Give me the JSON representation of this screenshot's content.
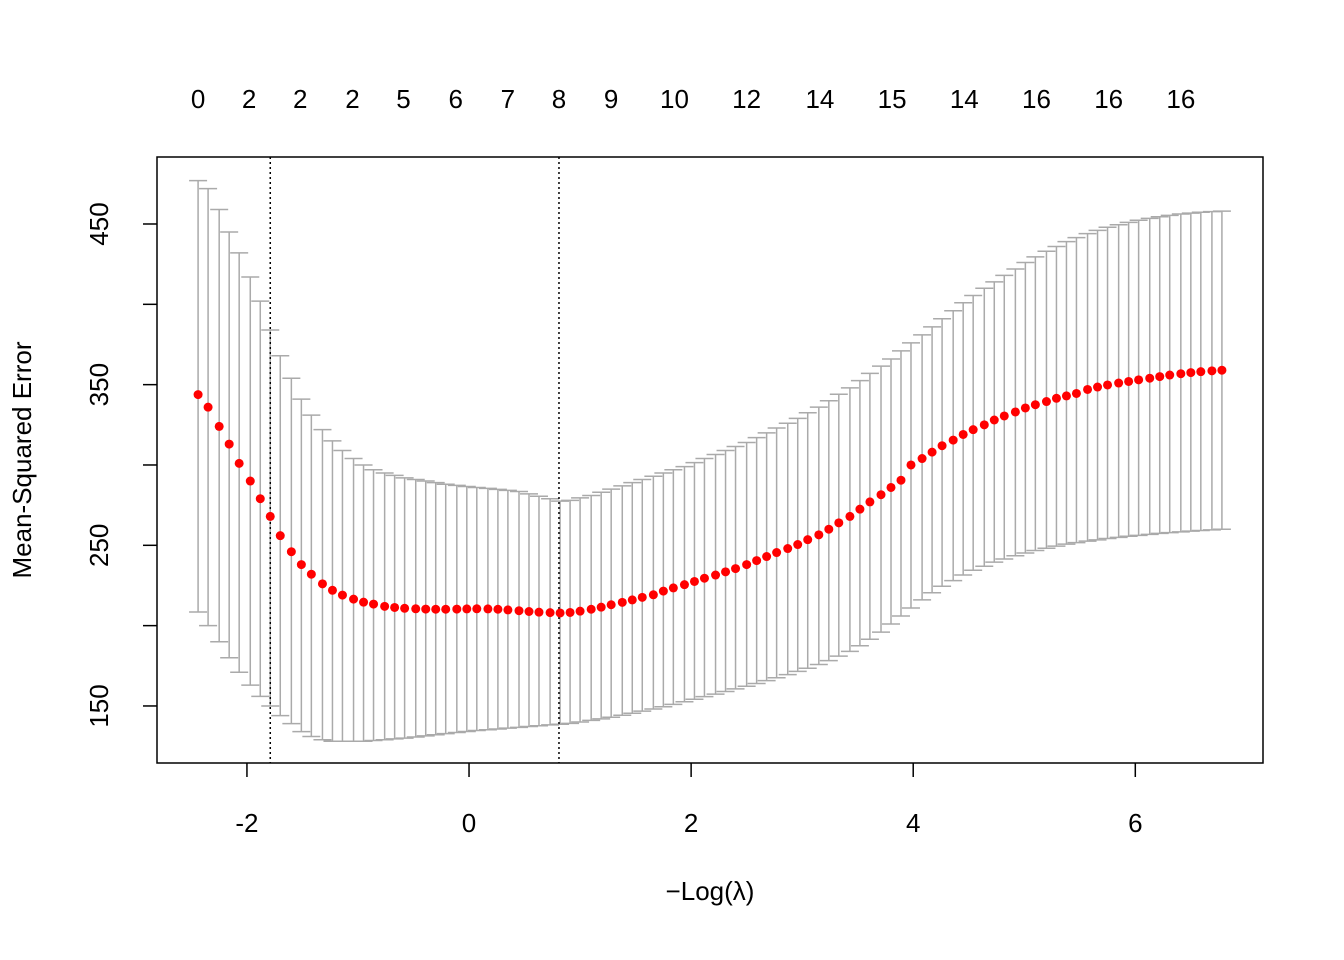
{
  "chart_data": {
    "type": "errorbar",
    "xlabel": "−Log(λ)",
    "ylabel": "Mean-Squared Error",
    "xlim": [
      -2.81,
      7.15
    ],
    "ylim": [
      114.5,
      491.7
    ],
    "xticks": [
      -2,
      0,
      2,
      4,
      6
    ],
    "yticks": [
      150,
      250,
      350,
      450
    ],
    "yminor_ticks": [
      200,
      300,
      400
    ],
    "vlines": [
      -1.79,
      0.81
    ],
    "top_axis": {
      "ticks": [
        -2.44,
        -1.98,
        -1.52,
        -1.05,
        -0.59,
        -0.12,
        0.35,
        0.81,
        1.28,
        1.85,
        2.5,
        3.16,
        3.81,
        4.46,
        5.11,
        5.76,
        6.41
      ],
      "labels": [
        0,
        2,
        2,
        2,
        5,
        6,
        7,
        8,
        9,
        10,
        12,
        14,
        15,
        14,
        16,
        16,
        16
      ]
    },
    "point_color": "#ff0000",
    "bar_color": "#aaaaaa",
    "x": [
      -2.44,
      -2.35,
      -2.25,
      -2.16,
      -2.07,
      -1.97,
      -1.88,
      -1.79,
      -1.7,
      -1.6,
      -1.51,
      -1.42,
      -1.32,
      -1.23,
      -1.14,
      -1.04,
      -0.95,
      -0.86,
      -0.76,
      -0.67,
      -0.58,
      -0.48,
      -0.39,
      -0.3,
      -0.21,
      -0.11,
      -0.02,
      0.07,
      0.17,
      0.26,
      0.35,
      0.45,
      0.54,
      0.63,
      0.73,
      0.82,
      0.91,
      1.0,
      1.1,
      1.19,
      1.28,
      1.38,
      1.47,
      1.56,
      1.66,
      1.75,
      1.84,
      1.94,
      2.03,
      2.12,
      2.22,
      2.31,
      2.4,
      2.5,
      2.59,
      2.68,
      2.77,
      2.87,
      2.96,
      3.05,
      3.15,
      3.24,
      3.33,
      3.43,
      3.52,
      3.61,
      3.71,
      3.8,
      3.89,
      3.98,
      4.08,
      4.17,
      4.26,
      4.36,
      4.45,
      4.54,
      4.64,
      4.73,
      4.82,
      4.92,
      5.01,
      5.1,
      5.2,
      5.29,
      5.38,
      5.47,
      5.57,
      5.66,
      5.75,
      5.85,
      5.94,
      6.03,
      6.13,
      6.22,
      6.31,
      6.41,
      6.5,
      6.59,
      6.69,
      6.78
    ],
    "values": [
      343.8,
      336,
      324,
      313,
      301,
      290,
      279,
      268,
      256,
      246,
      238,
      232,
      226,
      222,
      219,
      216.5,
      214.6,
      213.4,
      212,
      211.3,
      210.8,
      210.5,
      210.3,
      210.2,
      210.2,
      210.3,
      210.4,
      210.5,
      210.4,
      210.2,
      209.8,
      209.3,
      208.8,
      208.4,
      208.1,
      207.9,
      208.2,
      209,
      210.2,
      211.5,
      213,
      214.5,
      216,
      217.6,
      219.2,
      221.5,
      223.5,
      225.5,
      227.5,
      229.5,
      231.5,
      233.5,
      235.5,
      238,
      240.5,
      243,
      245.5,
      248,
      250.5,
      253.5,
      256.5,
      260,
      264,
      268,
      272.5,
      277,
      281.5,
      286,
      290.5,
      300,
      304,
      308,
      312,
      315.5,
      319,
      322,
      325,
      328,
      330.5,
      333,
      335.5,
      337.5,
      339.5,
      341.5,
      343,
      344.5,
      347,
      348.5,
      349.8,
      351,
      352,
      353,
      354,
      355,
      356,
      356.8,
      357.5,
      358.1,
      358.6,
      359
    ],
    "upper": [
      477,
      472,
      459,
      445,
      432,
      417,
      402,
      384,
      368,
      354,
      341,
      331,
      322,
      315,
      309,
      304,
      300,
      297,
      295,
      293.5,
      292,
      291,
      290,
      289,
      288,
      287.3,
      286.6,
      286,
      285.4,
      284.8,
      284.2,
      283.5,
      282,
      280.5,
      279,
      277.5,
      278,
      279.5,
      281,
      283,
      285,
      287,
      289,
      291,
      293,
      295,
      297,
      299,
      301.5,
      304,
      306.5,
      309,
      311.5,
      314,
      317,
      320,
      323,
      326,
      329,
      332.5,
      336,
      340,
      344,
      348,
      352.5,
      357,
      361.5,
      366,
      371,
      376,
      381,
      386,
      391,
      396,
      401,
      405.5,
      410,
      414,
      418,
      422,
      426,
      429.5,
      433,
      436,
      439,
      441.5,
      444,
      446,
      448,
      449.5,
      451,
      452.3,
      453.5,
      454.5,
      455.4,
      456.2,
      456.8,
      457.3,
      457.7,
      458
    ],
    "lower": [
      208.5,
      200,
      190,
      180,
      171,
      163,
      156,
      150,
      144,
      139,
      134,
      131,
      129,
      128,
      128,
      128,
      128,
      128.5,
      129,
      129.5,
      130,
      130.7,
      131.4,
      132.1,
      132.8,
      133.5,
      134.1,
      134.7,
      135.2,
      135.7,
      136.2,
      136.7,
      137.2,
      137.7,
      138.2,
      138.6,
      139.2,
      140,
      141,
      142,
      143,
      144.2,
      145.5,
      146.8,
      148.1,
      149.5,
      151,
      152.6,
      154.2,
      155.8,
      157.4,
      159,
      160.6,
      162.3,
      164,
      165.8,
      167.6,
      169.5,
      171.5,
      173.5,
      175.8,
      178.2,
      181,
      184,
      187.5,
      191.5,
      196,
      201,
      206,
      211,
      216,
      220.5,
      224.5,
      228,
      231.5,
      234.5,
      237,
      239.5,
      241.5,
      243.5,
      245.2,
      246.8,
      248.2,
      249.5,
      250.7,
      251.7,
      252.6,
      253.4,
      254.2,
      254.9,
      255.6,
      256.2,
      256.8,
      257.4,
      257.9,
      258.4,
      258.8,
      259.2,
      259.6,
      260
    ]
  }
}
